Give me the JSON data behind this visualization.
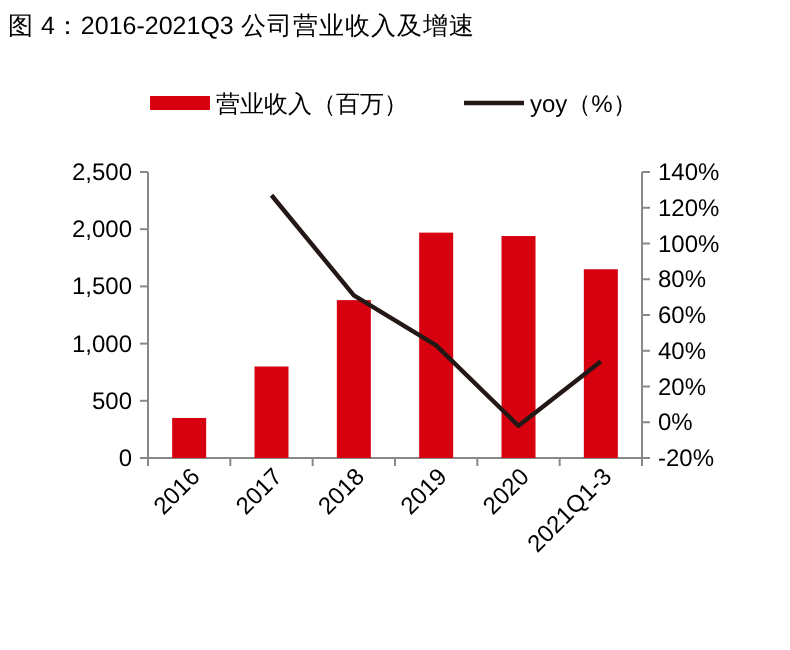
{
  "chart_data": {
    "type": "bar",
    "title": "图 4：2016-2021Q3 公司营业收入及增速",
    "categories": [
      "2016",
      "2017",
      "2018",
      "2019",
      "2020",
      "2021Q1-3"
    ],
    "series": [
      {
        "name": "营业收入（百万）",
        "color": "#d7000f",
        "values": [
          350,
          800,
          1380,
          1970,
          1940,
          1650
        ]
      },
      {
        "name": "yoy（%）",
        "type": "line",
        "axis": "y2",
        "color": "#231815",
        "values": [
          null,
          127,
          71,
          43,
          -2,
          34
        ]
      }
    ],
    "ylim": [
      0,
      2500
    ],
    "yticks": [
      0,
      500,
      {
        "value": 1000,
        "label": "1,000"
      },
      {
        "value": 1500,
        "label": "1,500"
      },
      {
        "value": 2000,
        "label": "2,000"
      },
      {
        "value": 2500,
        "label": "2,500"
      }
    ],
    "y2lim": [
      -20,
      140
    ],
    "y2ticks": [
      {
        "value": -20,
        "label": "-20%"
      },
      {
        "value": 0,
        "label": "0%"
      },
      {
        "value": 20,
        "label": "20%"
      },
      {
        "value": 40,
        "label": "40%"
      },
      {
        "value": 60,
        "label": "60%"
      },
      {
        "value": 80,
        "label": "80%"
      },
      {
        "value": 100,
        "label": "100%"
      },
      {
        "value": 120,
        "label": "120%"
      },
      {
        "value": 140,
        "label": "140%"
      }
    ],
    "legend": "top",
    "grid": false
  }
}
